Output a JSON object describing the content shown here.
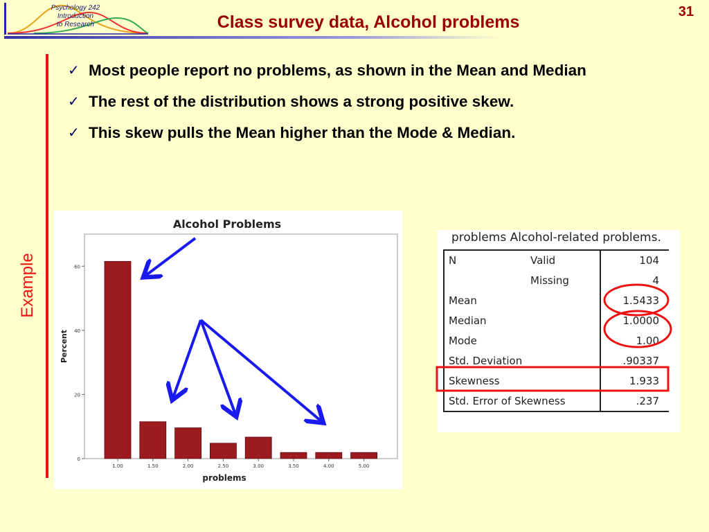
{
  "header": {
    "logo_lines": [
      "Psychology 242",
      "Introduction",
      "to Research"
    ],
    "title": "Class survey data, Alcohol problems",
    "slide_number": "31"
  },
  "side_label": "Example",
  "bullets": [
    "Most people report no problems, as shown in the Mean and Median",
    "The rest of the distribution shows a strong positive skew.",
    "This skew pulls the Mean higher than the Mode & Median."
  ],
  "colors": {
    "background": "#ffffcc",
    "title": "#990000",
    "bar": "#9b1b1f",
    "arrow": "#1a1aee",
    "highlight": "#ee1111"
  },
  "chart_data": {
    "type": "bar",
    "title": "Alcohol Problems",
    "xlabel": "problems",
    "ylabel": "Percent",
    "categories": [
      "1.00",
      "1.50",
      "2.00",
      "2.50",
      "3.00",
      "3.50",
      "4.00",
      "5.00"
    ],
    "values": [
      61.5,
      11.5,
      9.6,
      4.8,
      6.7,
      1.9,
      1.9,
      1.9
    ],
    "ylim": [
      0,
      70
    ],
    "yticks": [
      0,
      20,
      40,
      60
    ],
    "grid": false,
    "legend": "none"
  },
  "stats_table": {
    "caption": "problems Alcohol-related problems.",
    "rows": [
      {
        "label": "N",
        "sub": "Valid",
        "value": "104"
      },
      {
        "label": "",
        "sub": "Missing",
        "value": "4"
      },
      {
        "label": "Mean",
        "sub": "",
        "value": "1.5433"
      },
      {
        "label": "Median",
        "sub": "",
        "value": "1.0000"
      },
      {
        "label": "Mode",
        "sub": "",
        "value": "1.00"
      },
      {
        "label": "Std. Deviation",
        "sub": "",
        "value": ".90337"
      },
      {
        "label": "Skewness",
        "sub": "",
        "value": "1.933"
      },
      {
        "label": "Std. Error of Skewness",
        "sub": "",
        "value": ".237"
      }
    ]
  }
}
